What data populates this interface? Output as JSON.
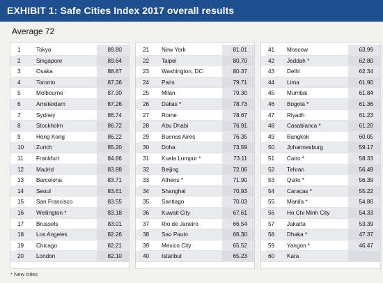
{
  "exhibit": {
    "title": "EXHIBIT 1: Safe Cities Index 2017 overall results",
    "average_label": "Average 72",
    "footnote": "* New cities"
  },
  "columns": [
    [
      {
        "rank": "1",
        "city": "Tokyo",
        "score": "89.80"
      },
      {
        "rank": "2",
        "city": "Singapore",
        "score": "89.64"
      },
      {
        "rank": "3",
        "city": "Osaka",
        "score": "88.87"
      },
      {
        "rank": "4",
        "city": "Toronto",
        "score": "87.36"
      },
      {
        "rank": "5",
        "city": "Melbourne",
        "score": "87.30"
      },
      {
        "rank": "6",
        "city": "Amsterdam",
        "score": "87.26"
      },
      {
        "rank": "7",
        "city": "Sydney",
        "score": "86.74"
      },
      {
        "rank": "8",
        "city": "Stockholm",
        "score": "86.72"
      },
      {
        "rank": "9",
        "city": "Hong Kong",
        "score": "86.22"
      },
      {
        "rank": "10",
        "city": "Zurich",
        "score": "85.20"
      },
      {
        "rank": "11",
        "city": "Frankfurt",
        "score": "84.86"
      },
      {
        "rank": "12",
        "city": "Madrid",
        "score": "83.88"
      },
      {
        "rank": "13",
        "city": "Barcelona",
        "score": "83.71"
      },
      {
        "rank": "14",
        "city": "Seoul",
        "score": "83.61"
      },
      {
        "rank": "15",
        "city": "San Francisco",
        "score": "83.55"
      },
      {
        "rank": "16",
        "city": "Wellington *",
        "score": "83.18"
      },
      {
        "rank": "17",
        "city": "Brussels",
        "score": "83.01"
      },
      {
        "rank": "18",
        "city": "Los Angeles",
        "score": "82.26"
      },
      {
        "rank": "19",
        "city": "Chicago",
        "score": "82.21"
      },
      {
        "rank": "20",
        "city": "London",
        "score": "82.10"
      }
    ],
    [
      {
        "rank": "21",
        "city": "New York",
        "score": "81.01"
      },
      {
        "rank": "22",
        "city": "Taipei",
        "score": "80.70"
      },
      {
        "rank": "23",
        "city": "Washington, DC",
        "score": "80.37"
      },
      {
        "rank": "24",
        "city": "Paris",
        "score": "79.71"
      },
      {
        "rank": "25",
        "city": "Milan",
        "score": "79.30"
      },
      {
        "rank": "26",
        "city": "Dallas *",
        "score": "78.73"
      },
      {
        "rank": "27",
        "city": "Rome",
        "score": "78.67"
      },
      {
        "rank": "28",
        "city": "Abu Dhabi",
        "score": "76.91"
      },
      {
        "rank": "29",
        "city": "Buenos Aires",
        "score": "76.35"
      },
      {
        "rank": "30",
        "city": "Doha",
        "score": "73.59"
      },
      {
        "rank": "31",
        "city": "Kuala Lumpur *",
        "score": "73.11"
      },
      {
        "rank": "32",
        "city": "Beijing",
        "score": "72.06"
      },
      {
        "rank": "33",
        "city": "Athens *",
        "score": "71.90"
      },
      {
        "rank": "34",
        "city": "Shanghai",
        "score": "70.93"
      },
      {
        "rank": "35",
        "city": "Santiago",
        "score": "70.03"
      },
      {
        "rank": "36",
        "city": "Kuwait City",
        "score": "67.61"
      },
      {
        "rank": "37",
        "city": "Rio de Janeiro",
        "score": "66.54"
      },
      {
        "rank": "38",
        "city": "Sao Paulo",
        "score": "66.30"
      },
      {
        "rank": "39",
        "city": "Mexico City",
        "score": "65.52"
      },
      {
        "rank": "40",
        "city": "Istanbul",
        "score": "65.23"
      }
    ],
    [
      {
        "rank": "41",
        "city": "Moscow",
        "score": "63.99"
      },
      {
        "rank": "42",
        "city": "Jeddah *",
        "score": "62.80"
      },
      {
        "rank": "43",
        "city": "Delhi",
        "score": "62.34"
      },
      {
        "rank": "44",
        "city": "Lima",
        "score": "61.90"
      },
      {
        "rank": "45",
        "city": "Mumbai",
        "score": "61.84"
      },
      {
        "rank": "46",
        "city": "Bogota *",
        "score": "61.36"
      },
      {
        "rank": "47",
        "city": "Riyadh",
        "score": "61.23"
      },
      {
        "rank": "48",
        "city": "Casablanca *",
        "score": "61.20"
      },
      {
        "rank": "49",
        "city": "Bangkok",
        "score": "60.05"
      },
      {
        "rank": "50",
        "city": "Johannesburg",
        "score": "59.17"
      },
      {
        "rank": "51",
        "city": "Cairo *",
        "score": "58.33"
      },
      {
        "rank": "52",
        "city": "Tehran",
        "score": "56.49"
      },
      {
        "rank": "53",
        "city": "Quito *",
        "score": "56.39"
      },
      {
        "rank": "54",
        "city": "Caracas *",
        "score": "55.22"
      },
      {
        "rank": "55",
        "city": "Manila *",
        "score": "54.86"
      },
      {
        "rank": "56",
        "city": "Ho Chi Minh City",
        "score": "54.33"
      },
      {
        "rank": "57",
        "city": "Jakarta",
        "score": "53.39"
      },
      {
        "rank": "58",
        "city": "Dhaka *",
        "score": "47.37"
      },
      {
        "rank": "59",
        "city": "Yangon *",
        "score": "46.47"
      },
      {
        "rank": "60",
        "city": "Kara",
        "score": ""
      }
    ]
  ],
  "colors": {
    "title_bar": "#1d4f91",
    "shaded_row": "#e9eaee",
    "score_band": "#e4e5ea"
  }
}
